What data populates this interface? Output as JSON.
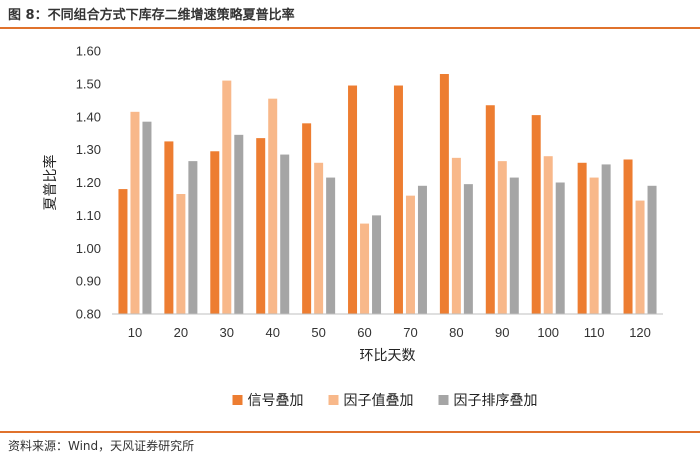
{
  "figure": {
    "title": "图 8：不同组合方式下库存二维增速策略夏普比率",
    "source": "资料来源：Wind，天风证券研究所"
  },
  "colors": {
    "accent": "#e0722c",
    "series": [
      "#ed7d31",
      "#f8b88a",
      "#a5a5a5"
    ]
  },
  "chart_data": {
    "type": "bar",
    "xlabel": "环比天数",
    "ylabel": "夏普比率",
    "ylim": [
      0.8,
      1.6
    ],
    "yticks": [
      "0.80",
      "0.90",
      "1.00",
      "1.10",
      "1.20",
      "1.30",
      "1.40",
      "1.50",
      "1.60"
    ],
    "grid": false,
    "legend_position": "bottom",
    "categories": [
      "10",
      "20",
      "30",
      "40",
      "50",
      "60",
      "70",
      "80",
      "90",
      "100",
      "110",
      "120"
    ],
    "series": [
      {
        "name": "信号叠加",
        "values": [
          1.18,
          1.325,
          1.295,
          1.335,
          1.38,
          1.495,
          1.495,
          1.53,
          1.435,
          1.405,
          1.26,
          1.27
        ]
      },
      {
        "name": "因子值叠加",
        "values": [
          1.415,
          1.165,
          1.51,
          1.455,
          1.26,
          1.075,
          1.16,
          1.275,
          1.265,
          1.28,
          1.215,
          1.145
        ]
      },
      {
        "name": "因子排序叠加",
        "values": [
          1.385,
          1.265,
          1.345,
          1.285,
          1.215,
          1.1,
          1.19,
          1.195,
          1.215,
          1.2,
          1.255,
          1.19
        ]
      }
    ]
  }
}
